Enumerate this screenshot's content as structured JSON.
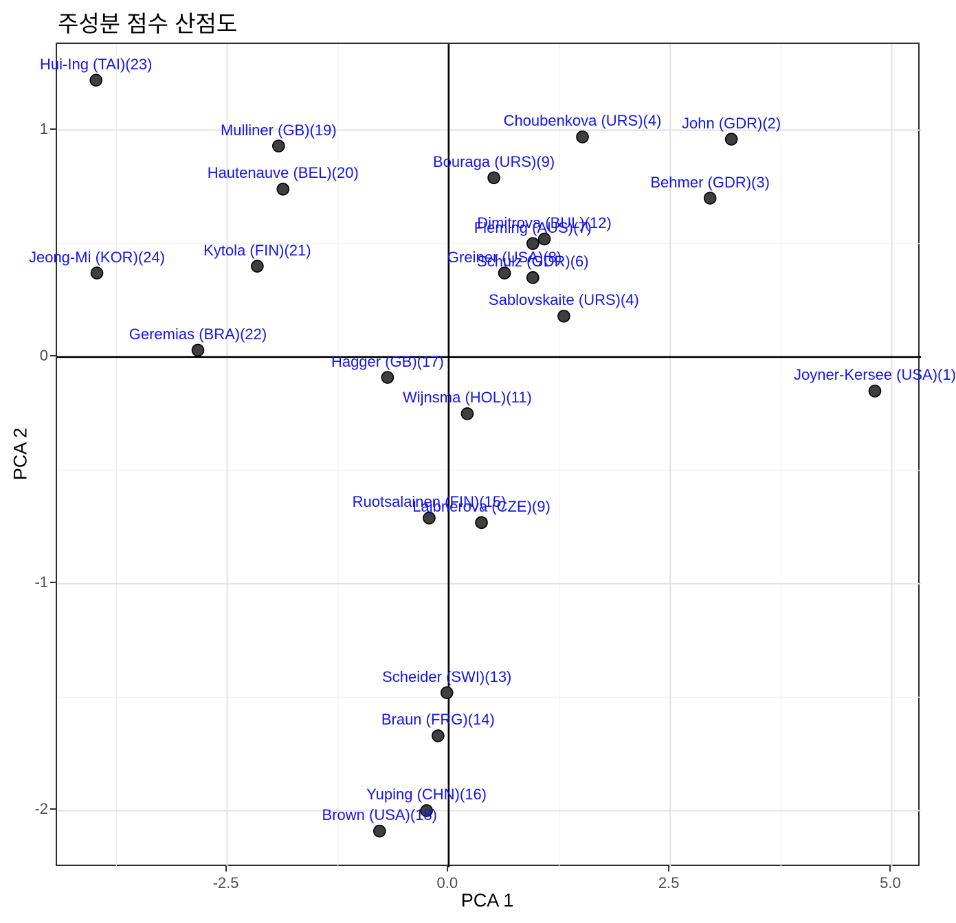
{
  "title": "주성분 점수 산점도",
  "chart_data": {
    "type": "scatter",
    "title": "주성분 점수 산점도",
    "xlabel": "PCA 1",
    "ylabel": "PCA 2",
    "xlim": [
      -4.42,
      5.33
    ],
    "ylim": [
      -2.25,
      1.38
    ],
    "grid": true,
    "x_major_ticks": [
      -2.5,
      0.0,
      2.5,
      5.0
    ],
    "x_tick_labels": [
      "-2.5",
      "0.0",
      "2.5",
      "5.0"
    ],
    "x_minor_ticks": [
      -3.75,
      -1.25,
      1.25,
      3.75
    ],
    "y_major_ticks": [
      1,
      0,
      -1,
      -2
    ],
    "y_tick_labels": [
      "1",
      "0",
      "-1",
      "-2"
    ],
    "y_minor_ticks": [
      0.5,
      -0.5,
      -1.5
    ],
    "reference_lines": {
      "vline_x": 0,
      "hline_y": 0
    },
    "colors": {
      "point_fill": "#3f3f3f",
      "point_stroke": "#000000",
      "label_text": "#1414ee",
      "grid_major": "#e2e2e2",
      "grid_minor": "#f0f0f0",
      "axis_text": "#4d4d4d",
      "panel_border": "#2e2e2e",
      "reference_line": "#000000"
    },
    "points": [
      {
        "label": "Joyner-Kersee (USA)(1)",
        "x": 4.81,
        "y": -0.15
      },
      {
        "label": "John (GDR)(2)",
        "x": 3.19,
        "y": 0.96
      },
      {
        "label": "Behmer (GDR)(3)",
        "x": 2.95,
        "y": 0.7
      },
      {
        "label": "Choubenkova (URS)(4)",
        "x": 1.51,
        "y": 0.97
      },
      {
        "label": "Sablovskaite (URS)(4)",
        "x": 1.3,
        "y": 0.18
      },
      {
        "label": "Schulz (GDR)(6)",
        "x": 0.95,
        "y": 0.35
      },
      {
        "label": "Fleming (AUS)(7)",
        "x": 0.95,
        "y": 0.5
      },
      {
        "label": "Greiner (USA)(8)",
        "x": 0.63,
        "y": 0.37
      },
      {
        "label": "Lajbnerova (CZE)(9)",
        "x": 0.37,
        "y": -0.73
      },
      {
        "label": "Bouraga (URS)(9)",
        "x": 0.51,
        "y": 0.79
      },
      {
        "label": "Wijnsma (HOL)(11)",
        "x": 0.21,
        "y": -0.25
      },
      {
        "label": "Dimitrova (BUL)(12)",
        "x": 1.08,
        "y": 0.52
      },
      {
        "label": "Scheider (SWI)(13)",
        "x": -0.02,
        "y": -1.48
      },
      {
        "label": "Braun (FRG)(14)",
        "x": -0.12,
        "y": -1.67
      },
      {
        "label": "Ruotsalainen (FIN)(15)",
        "x": -0.22,
        "y": -0.71
      },
      {
        "label": "Yuping (CHN)(16)",
        "x": -0.25,
        "y": -2.0
      },
      {
        "label": "Hagger (GB)(17)",
        "x": -0.69,
        "y": -0.09
      },
      {
        "label": "Brown (USA)(18)",
        "x": -0.78,
        "y": -2.09
      },
      {
        "label": "Mulliner (GB)(19)",
        "x": -1.92,
        "y": 0.93
      },
      {
        "label": "Hautenauve (BEL)(20)",
        "x": -1.87,
        "y": 0.74
      },
      {
        "label": "Kytola (FIN)(21)",
        "x": -2.16,
        "y": 0.4
      },
      {
        "label": "Geremias (BRA)(22)",
        "x": -2.83,
        "y": 0.03
      },
      {
        "label": "Hui-Ing (TAI)(23)",
        "x": -3.98,
        "y": 1.22
      },
      {
        "label": "Jeong-Mi (KOR)(24)",
        "x": -3.97,
        "y": 0.37
      }
    ]
  }
}
